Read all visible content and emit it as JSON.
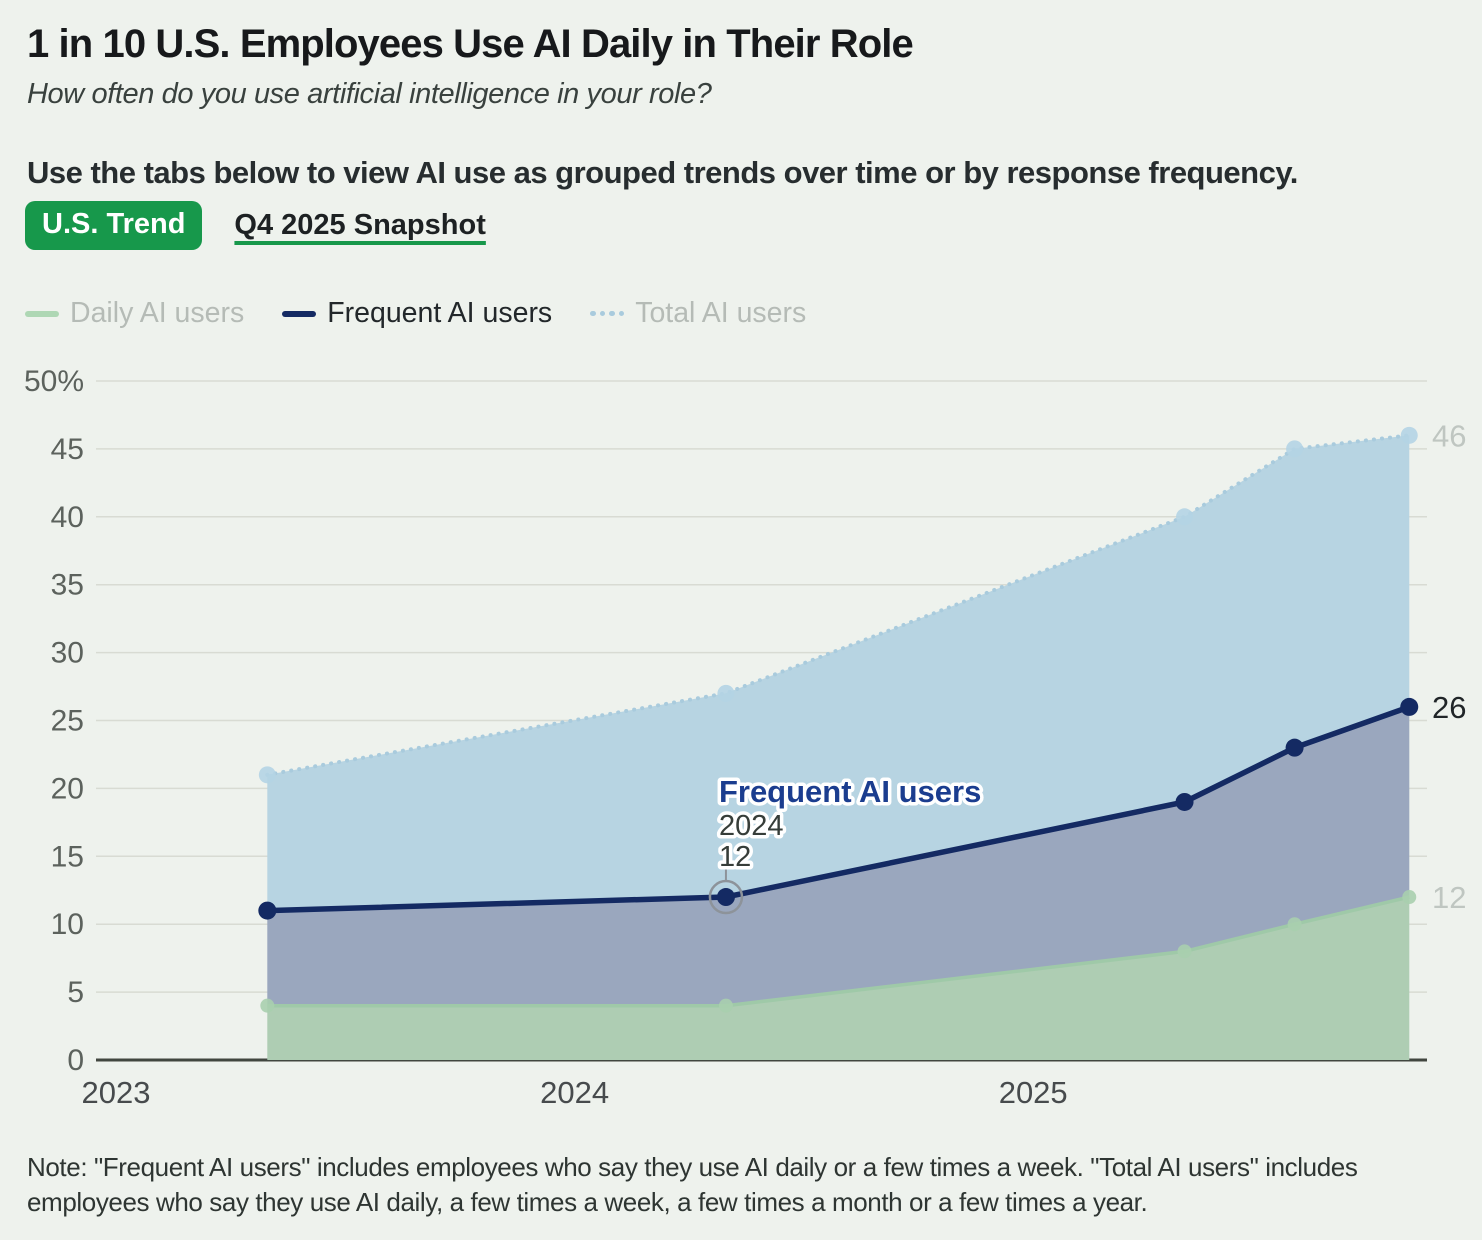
{
  "header": {
    "title": "1 in 10 U.S. Employees Use AI Daily in Their Role",
    "subtitle": "How often do you use artificial intelligence in your role?",
    "instruction": "Use the tabs below to view AI use as grouped trends over time or by response frequency."
  },
  "tabs": [
    {
      "label": "U.S. Trend",
      "active": true
    },
    {
      "label": "Q4 2025 Snapshot",
      "active": false
    }
  ],
  "legend": [
    {
      "label": "Daily AI users",
      "color": "#aed7b4",
      "style": "solid",
      "active": false
    },
    {
      "label": "Frequent AI users",
      "color": "#142a63",
      "style": "solid",
      "active": true
    },
    {
      "label": "Total AI users",
      "color": "#a9cbdd",
      "style": "dotted",
      "active": false
    }
  ],
  "theme": {
    "background": "#eef2ed",
    "accent_green": "#17984b",
    "navy": "#142a63",
    "total_band": "#b7d4e2",
    "frequent_band": "#9aa7be",
    "daily_band": "#aecdb3",
    "muted_label": "#b5bbb6",
    "grid": "#d8dbd3"
  },
  "chart_data": {
    "type": "area",
    "title": "1 in 10 U.S. Employees Use AI Daily in Their Role",
    "xlabel": "",
    "ylabel": "",
    "x": [
      2023.33,
      2024.33,
      2025.33,
      2025.57,
      2025.82
    ],
    "series": [
      {
        "name": "Total AI users",
        "values": [
          21,
          27,
          40,
          45,
          46
        ],
        "line": "dotted",
        "color": "#a9cbdd",
        "dot_color": "#b4d4e4",
        "band_color": "#b7d4e2",
        "end_label": "46",
        "end_label_color": "#bfc6c1"
      },
      {
        "name": "Frequent AI users",
        "values": [
          11,
          12,
          19,
          23,
          26
        ],
        "line": "solid",
        "color": "#142a63",
        "dot_color": "#142a63",
        "band_color": "#9aa7be",
        "end_label": "26",
        "end_label_color": "#202528"
      },
      {
        "name": "Daily AI users",
        "values": [
          4,
          4,
          8,
          10,
          12
        ],
        "line": "solid",
        "color": "#9fc9a8",
        "dot_color": "#a8cfae",
        "band_color": "#aecdb3",
        "end_label": "12",
        "end_label_color": "#bfc6c1"
      }
    ],
    "ylim": [
      0,
      50
    ],
    "yticks": [
      0,
      5,
      10,
      15,
      20,
      25,
      30,
      35,
      40,
      45,
      50
    ],
    "ytick_labels": [
      "0",
      "5",
      "10",
      "15",
      "20",
      "25",
      "30",
      "35",
      "40",
      "45",
      "50%"
    ],
    "xticks": [
      2023,
      2024,
      2025
    ],
    "xtick_labels": [
      "2023",
      "2024",
      "2025"
    ],
    "grid": true,
    "legend_position": "top-left",
    "annotation": {
      "title": "Frequent AI users",
      "x_label": "2024",
      "value": "12",
      "x": 2024.33,
      "y": 12
    }
  },
  "note": "Note: \"Frequent AI users\" includes employees who say they use AI daily or a few times a week. \"Total AI users\" includes employees who say they use AI daily, a few times a week, a few times a month or a few times a year."
}
